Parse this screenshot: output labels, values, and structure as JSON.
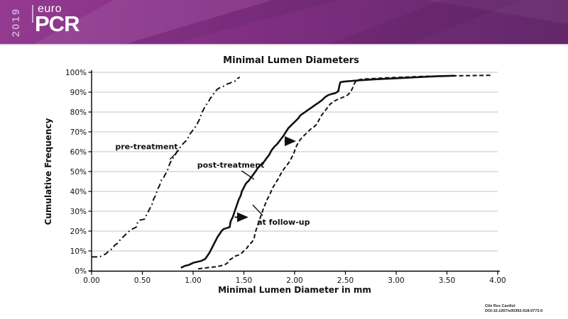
{
  "slide": {
    "brand": {
      "year": "2019",
      "logo_top": "euro",
      "logo_main": "PCR"
    },
    "citation": {
      "line1": "Clin Res Cardiol",
      "line2": "DOI:10.1007/s00392-018-0773-0"
    }
  },
  "chart_data": {
    "type": "line",
    "title": "Minimal Lumen Diameters",
    "xlabel": "Minimal Lumen Diameter in mm",
    "ylabel": "Cumulative Frequency",
    "xlim": [
      0,
      4
    ],
    "ylim": [
      0,
      100
    ],
    "grid": "horizontal",
    "legend_position": "inline-annotations",
    "x_tick_labels": [
      "0.00",
      "0.50",
      "1.00",
      "1.50",
      "2.00",
      "2.50",
      "3.00",
      "3.50",
      "4.00"
    ],
    "x_tick_values": [
      0,
      0.5,
      1,
      1.5,
      2,
      2.5,
      3,
      3.5,
      4
    ],
    "y_tick_labels": [
      "0%",
      "10%",
      "20%",
      "30%",
      "40%",
      "50%",
      "60%",
      "70%",
      "80%",
      "90%",
      "100%"
    ],
    "y_tick_values": [
      0,
      10,
      20,
      30,
      40,
      50,
      60,
      70,
      80,
      90,
      100
    ],
    "line_color": "#111111",
    "series": [
      {
        "name": "pre-treatment",
        "line_style": "dash-dot",
        "points": [
          [
            0.0,
            7
          ],
          [
            0.08,
            7
          ],
          [
            0.1,
            7.5
          ],
          [
            0.14,
            8.5
          ],
          [
            0.17,
            10
          ],
          [
            0.2,
            11
          ],
          [
            0.23,
            13
          ],
          [
            0.26,
            14
          ],
          [
            0.28,
            15.5
          ],
          [
            0.31,
            17
          ],
          [
            0.34,
            18.5
          ],
          [
            0.37,
            20
          ],
          [
            0.4,
            21
          ],
          [
            0.44,
            22
          ],
          [
            0.45,
            24
          ],
          [
            0.47,
            25.5
          ],
          [
            0.52,
            26
          ],
          [
            0.54,
            28
          ],
          [
            0.56,
            30
          ],
          [
            0.58,
            32
          ],
          [
            0.6,
            34
          ],
          [
            0.61,
            36
          ],
          [
            0.63,
            38
          ],
          [
            0.65,
            41
          ],
          [
            0.67,
            43
          ],
          [
            0.69,
            46
          ],
          [
            0.71,
            47
          ],
          [
            0.73,
            49
          ],
          [
            0.75,
            51
          ],
          [
            0.77,
            54
          ],
          [
            0.79,
            56
          ],
          [
            0.82,
            58
          ],
          [
            0.84,
            60
          ],
          [
            0.87,
            62
          ],
          [
            0.9,
            64
          ],
          [
            0.93,
            65.5
          ],
          [
            0.95,
            67
          ],
          [
            0.97,
            69
          ],
          [
            1.0,
            71
          ],
          [
            1.03,
            73
          ],
          [
            1.05,
            75
          ],
          [
            1.07,
            77
          ],
          [
            1.08,
            79
          ],
          [
            1.1,
            81
          ],
          [
            1.12,
            83
          ],
          [
            1.15,
            85
          ],
          [
            1.17,
            87
          ],
          [
            1.19,
            88
          ],
          [
            1.21,
            90
          ],
          [
            1.24,
            91.5
          ],
          [
            1.27,
            92.5
          ],
          [
            1.3,
            93
          ],
          [
            1.33,
            94
          ],
          [
            1.36,
            94.5
          ],
          [
            1.38,
            95
          ],
          [
            1.41,
            95.5
          ],
          [
            1.43,
            96
          ],
          [
            1.44,
            97
          ],
          [
            1.46,
            97.5
          ]
        ]
      },
      {
        "name": "post-treatment",
        "line_style": "solid",
        "points": [
          [
            0.88,
            1.5
          ],
          [
            0.92,
            2.5
          ],
          [
            0.96,
            3
          ],
          [
            1.0,
            4
          ],
          [
            1.04,
            4.5
          ],
          [
            1.08,
            5
          ],
          [
            1.12,
            6
          ],
          [
            1.14,
            7.5
          ],
          [
            1.16,
            9
          ],
          [
            1.18,
            11
          ],
          [
            1.2,
            13
          ],
          [
            1.22,
            15
          ],
          [
            1.24,
            17
          ],
          [
            1.26,
            18.5
          ],
          [
            1.28,
            20
          ],
          [
            1.3,
            21
          ],
          [
            1.33,
            21.5
          ],
          [
            1.36,
            22
          ],
          [
            1.37,
            25
          ],
          [
            1.39,
            27
          ],
          [
            1.41,
            30
          ],
          [
            1.43,
            33
          ],
          [
            1.45,
            36
          ],
          [
            1.47,
            38
          ],
          [
            1.48,
            40
          ],
          [
            1.5,
            42
          ],
          [
            1.52,
            44
          ],
          [
            1.55,
            45.5
          ],
          [
            1.57,
            47
          ],
          [
            1.6,
            49
          ],
          [
            1.62,
            50.5
          ],
          [
            1.64,
            52
          ],
          [
            1.67,
            53.5
          ],
          [
            1.7,
            55
          ],
          [
            1.72,
            56.5
          ],
          [
            1.75,
            58.5
          ],
          [
            1.77,
            60.5
          ],
          [
            1.8,
            62.5
          ],
          [
            1.83,
            64
          ],
          [
            1.86,
            66
          ],
          [
            1.89,
            68
          ],
          [
            1.92,
            70.5
          ],
          [
            1.94,
            72
          ],
          [
            1.97,
            73.5
          ],
          [
            2.0,
            75
          ],
          [
            2.03,
            76.5
          ],
          [
            2.06,
            78.5
          ],
          [
            2.09,
            79.5
          ],
          [
            2.13,
            81
          ],
          [
            2.16,
            82
          ],
          [
            2.2,
            83.5
          ],
          [
            2.23,
            84.5
          ],
          [
            2.27,
            86
          ],
          [
            2.3,
            87.5
          ],
          [
            2.33,
            88.5
          ],
          [
            2.36,
            89
          ],
          [
            2.4,
            89.5
          ],
          [
            2.43,
            90.5
          ],
          [
            2.44,
            93
          ],
          [
            2.45,
            95
          ],
          [
            2.48,
            95.3
          ],
          [
            2.55,
            95.6
          ],
          [
            2.65,
            96
          ],
          [
            2.8,
            96.5
          ],
          [
            3.0,
            97
          ],
          [
            3.2,
            97.5
          ],
          [
            3.4,
            98
          ],
          [
            3.58,
            98.3
          ]
        ]
      },
      {
        "name": "at follow-up",
        "line_style": "dashed",
        "points": [
          [
            1.05,
            1
          ],
          [
            1.1,
            1.3
          ],
          [
            1.16,
            1.7
          ],
          [
            1.22,
            2
          ],
          [
            1.27,
            2.5
          ],
          [
            1.31,
            3
          ],
          [
            1.34,
            4
          ],
          [
            1.36,
            5.5
          ],
          [
            1.39,
            6.5
          ],
          [
            1.42,
            7.5
          ],
          [
            1.45,
            8
          ],
          [
            1.48,
            9
          ],
          [
            1.5,
            10
          ],
          [
            1.53,
            11.5
          ],
          [
            1.55,
            13
          ],
          [
            1.58,
            14.5
          ],
          [
            1.6,
            16
          ],
          [
            1.61,
            19
          ],
          [
            1.63,
            22
          ],
          [
            1.65,
            25
          ],
          [
            1.67,
            28
          ],
          [
            1.69,
            31
          ],
          [
            1.71,
            33.5
          ],
          [
            1.73,
            36
          ],
          [
            1.76,
            39
          ],
          [
            1.78,
            41.5
          ],
          [
            1.81,
            44
          ],
          [
            1.84,
            46.5
          ],
          [
            1.86,
            48.5
          ],
          [
            1.89,
            51
          ],
          [
            1.92,
            53
          ],
          [
            1.95,
            55
          ],
          [
            1.97,
            57
          ],
          [
            1.99,
            59
          ],
          [
            2.01,
            62
          ],
          [
            2.04,
            65
          ],
          [
            2.07,
            67
          ],
          [
            2.1,
            68.5
          ],
          [
            2.13,
            70
          ],
          [
            2.16,
            71.5
          ],
          [
            2.19,
            72.5
          ],
          [
            2.22,
            74
          ],
          [
            2.24,
            76
          ],
          [
            2.26,
            78
          ],
          [
            2.29,
            80
          ],
          [
            2.32,
            82
          ],
          [
            2.35,
            84
          ],
          [
            2.39,
            85.5
          ],
          [
            2.43,
            86.5
          ],
          [
            2.48,
            87.5
          ],
          [
            2.52,
            88.5
          ],
          [
            2.55,
            90
          ],
          [
            2.57,
            92
          ],
          [
            2.59,
            94.5
          ],
          [
            2.61,
            96
          ],
          [
            2.66,
            96.5
          ],
          [
            2.75,
            96.8
          ],
          [
            2.9,
            97.2
          ],
          [
            3.1,
            97.6
          ],
          [
            3.3,
            98
          ],
          [
            3.55,
            98.2
          ],
          [
            3.8,
            98.4
          ],
          [
            3.93,
            98.5
          ]
        ]
      }
    ],
    "annotations": {
      "labels": [
        {
          "text": "pre-treatment",
          "x": 0.85,
          "y": 61.3,
          "anchor": "end",
          "leader": [
            [
              0.86,
              60.7
            ],
            [
              0.77,
              56.1
            ]
          ]
        },
        {
          "text": "post-treatment",
          "x": 1.04,
          "y": 52.0,
          "anchor": "start",
          "leader": [
            [
              1.476,
              50.4
            ],
            [
              1.601,
              46.1
            ]
          ]
        },
        {
          "text": "at follow-up",
          "x": 1.63,
          "y": 23.2,
          "anchor": "start",
          "leader": [
            [
              1.685,
              27.9
            ],
            [
              1.587,
              33.2
            ]
          ]
        }
      ],
      "arrows": [
        {
          "from": [
            1.41,
            27.0
          ],
          "to": [
            1.53,
            27.0
          ]
        },
        {
          "from": [
            1.9,
            65.3
          ],
          "to": [
            2.0,
            65.3
          ]
        }
      ]
    }
  }
}
